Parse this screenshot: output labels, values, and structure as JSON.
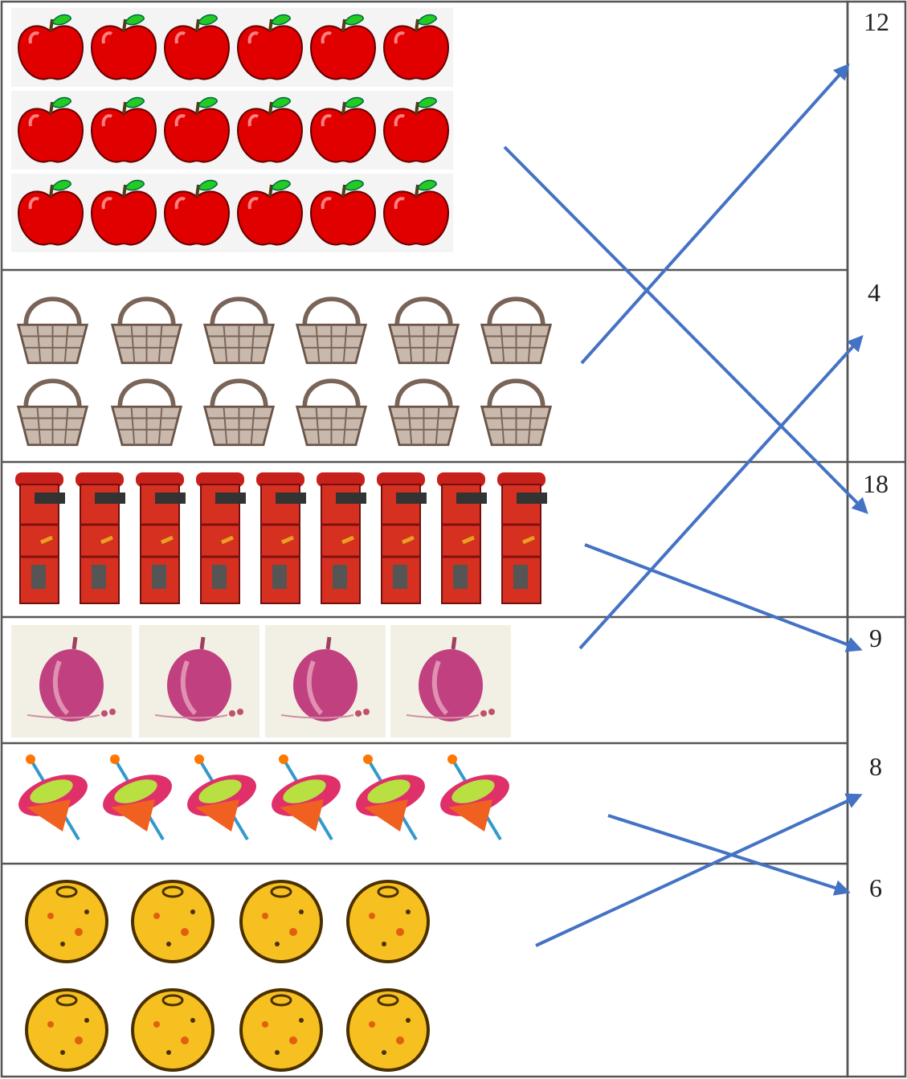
{
  "rows": [
    {
      "number": 12
    },
    {
      "number": 4
    },
    {
      "number": 18
    },
    {
      "number": 9
    },
    {
      "number": 8
    },
    {
      "number": 6
    }
  ]
}
